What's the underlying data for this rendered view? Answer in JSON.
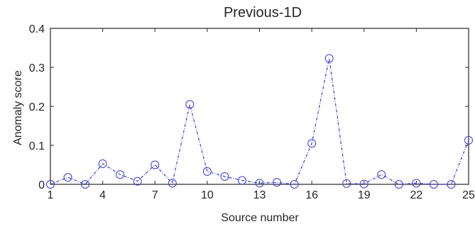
{
  "chart_data": {
    "type": "line",
    "title": "Previous-1D",
    "xlabel": "Source number",
    "ylabel": "Anomaly score",
    "xlim": [
      1,
      25
    ],
    "ylim": [
      0,
      0.4
    ],
    "xticks": [
      1,
      4,
      7,
      10,
      13,
      16,
      19,
      22,
      25
    ],
    "yticks": [
      0,
      0.1,
      0.2,
      0.3,
      0.4
    ],
    "ytick_labels": [
      "0",
      "0.1",
      "0.2",
      "0.3",
      "0.4"
    ],
    "grid": false,
    "series_color": "#3b3bd6",
    "x": [
      1,
      2,
      3,
      4,
      5,
      6,
      7,
      8,
      9,
      10,
      11,
      12,
      13,
      14,
      15,
      16,
      17,
      18,
      19,
      20,
      21,
      22,
      23,
      24,
      25
    ],
    "series": [
      {
        "values": [
          0.0,
          0.018,
          0.0,
          0.053,
          0.025,
          0.008,
          0.05,
          0.003,
          0.205,
          0.033,
          0.02,
          0.01,
          0.003,
          0.005,
          0.0,
          0.105,
          0.323,
          0.002,
          0.001,
          0.025,
          0.0,
          0.003,
          0.0,
          0.0,
          0.113
        ]
      }
    ]
  }
}
